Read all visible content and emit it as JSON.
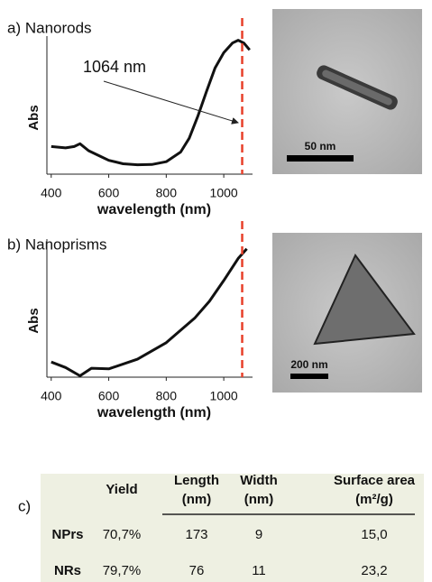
{
  "chart_data": [
    {
      "type": "line",
      "panel": "a) Nanorods",
      "ylabel": "Abs",
      "xlabel": "wavelength (nm)",
      "x": [
        400,
        450,
        480,
        500,
        530,
        570,
        600,
        650,
        700,
        750,
        800,
        850,
        880,
        910,
        940,
        970,
        1000,
        1030,
        1050,
        1070,
        1090
      ],
      "values": [
        0.2,
        0.19,
        0.2,
        0.22,
        0.17,
        0.13,
        0.1,
        0.075,
        0.068,
        0.07,
        0.09,
        0.16,
        0.26,
        0.42,
        0.6,
        0.77,
        0.88,
        0.95,
        0.97,
        0.95,
        0.9
      ],
      "color": "#111111",
      "xlim": [
        385,
        1100
      ],
      "ylim": [
        0,
        1
      ],
      "xticks": [
        400,
        600,
        800,
        1000
      ],
      "marker_line": {
        "x": 1064,
        "color": "#e8402a"
      },
      "annotation": "1064 nm"
    },
    {
      "type": "line",
      "panel": "b) Nanoprisms",
      "ylabel": "Abs",
      "xlabel": "wavelength (nm)",
      "x": [
        400,
        450,
        500,
        540,
        600,
        700,
        800,
        900,
        950,
        1000,
        1050,
        1080
      ],
      "values": [
        0.11,
        0.07,
        0.01,
        0.065,
        0.06,
        0.13,
        0.25,
        0.43,
        0.55,
        0.7,
        0.86,
        0.93
      ],
      "color": "#111111",
      "xlim": [
        385,
        1100
      ],
      "ylim": [
        0,
        1
      ],
      "xticks": [
        400,
        600,
        800,
        1000
      ],
      "marker_line": {
        "x": 1064,
        "color": "#e8402a"
      }
    }
  ],
  "images": [
    {
      "scale_bar": "50 nm"
    },
    {
      "scale_bar": "200 nm"
    }
  ],
  "table": {
    "label": "c)",
    "header": [
      [
        "Yield"
      ],
      [
        "Length",
        "(nm)"
      ],
      [
        "Width",
        "(nm)"
      ],
      [
        "Surface area",
        "(m²/g)"
      ]
    ],
    "rows": [
      [
        "NPrs",
        "70,7%",
        "173",
        "9",
        "15,0"
      ],
      [
        "NRs",
        "79,7%",
        "76",
        "11",
        "23,2"
      ]
    ]
  }
}
